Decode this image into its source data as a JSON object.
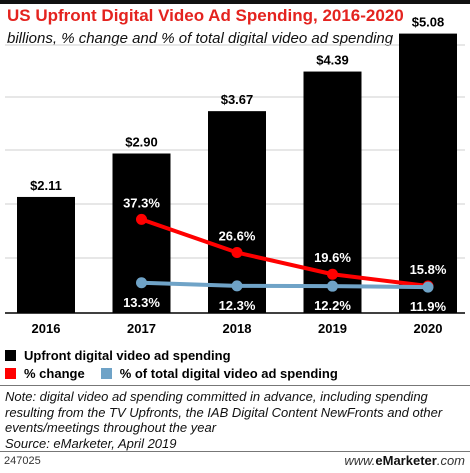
{
  "header": {
    "title": "US Upfront Digital Video Ad Spending, 2016-2020",
    "subtitle": "billions, % change and % of total digital video ad spending"
  },
  "chart_data": {
    "type": "bar",
    "categories": [
      "2016",
      "2017",
      "2018",
      "2019",
      "2020"
    ],
    "series": [
      {
        "name": "Upfront digital video ad spending",
        "kind": "bar",
        "color": "#000000",
        "values": [
          2.11,
          2.9,
          3.67,
          4.39,
          5.08
        ],
        "labels": [
          "$2.11",
          "$2.90",
          "$3.67",
          "$4.39",
          "$5.08"
        ]
      },
      {
        "name": "% change",
        "kind": "line",
        "color": "#ff0000",
        "values": [
          null,
          37.3,
          26.6,
          19.6,
          15.8
        ],
        "labels": [
          "",
          "37.3%",
          "26.6%",
          "19.6%",
          "15.8%"
        ]
      },
      {
        "name": "% of total digital video ad spending",
        "kind": "line",
        "color": "#6fa3c7",
        "values": [
          null,
          13.3,
          12.3,
          12.2,
          11.9
        ],
        "labels": [
          "",
          "13.3%",
          "12.3%",
          "12.2%",
          "11.9%"
        ]
      }
    ],
    "grid": true,
    "legend_position": "bottom-left"
  },
  "note": {
    "text": "Note: digital video ad spending committed in advance, including spending resulting from the TV Upfronts, the IAB Digital Content NewFronts and other events/meetings throughout the year",
    "source": "Source: eMarketer, April 2019"
  },
  "footer": {
    "id": "247025",
    "brand_prefix": "www.",
    "brand_name": "eMarketer",
    "brand_suffix": ".com"
  }
}
